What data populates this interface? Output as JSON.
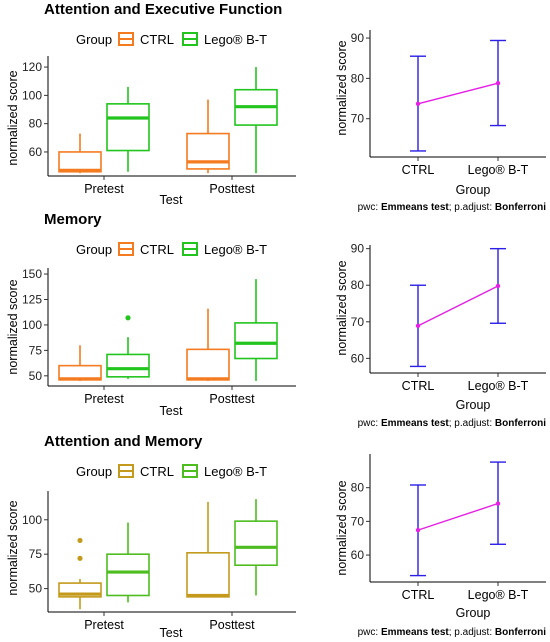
{
  "legend_group_label": "Group",
  "pwc_prefix": "pwc: ",
  "pwc_test": "Emmeans test",
  "pwc_mid": "; p.adjust: ",
  "pwc_adjust": "Bonferroni",
  "colors": {
    "a_ctrl": "#f47b20",
    "a_lego": "#22c41e",
    "b_ctrl": "#f47b20",
    "b_lego": "#22c41e",
    "c_ctrl": "#c49a1c",
    "c_lego": "#4dbd1f",
    "errorbar": "#2b1fe8",
    "line": "#e61ee6"
  },
  "chart_data": [
    {
      "type": "box",
      "title": "Attention and Executive Function",
      "xlabel": "Test",
      "ylabel": "normalized score",
      "categories": [
        "Pretest",
        "Posttest"
      ],
      "series_names": [
        "CTRL",
        "Lego® B-T"
      ],
      "yticks": [
        60,
        80,
        100,
        120
      ],
      "ylim": [
        43,
        125
      ],
      "boxes": [
        {
          "cat": 0,
          "series": 0,
          "min": 45,
          "q1": 46,
          "median": 47,
          "q3": 60,
          "max": 73,
          "outliers": []
        },
        {
          "cat": 0,
          "series": 1,
          "min": 46,
          "q1": 61,
          "median": 84,
          "q3": 94,
          "max": 106,
          "outliers": []
        },
        {
          "cat": 1,
          "series": 0,
          "min": 45,
          "q1": 48,
          "median": 53,
          "q3": 73,
          "max": 97,
          "outliers": []
        },
        {
          "cat": 1,
          "series": 1,
          "min": 45,
          "q1": 79,
          "median": 92,
          "q3": 104,
          "max": 120,
          "outliers": []
        }
      ]
    },
    {
      "type": "errorbar",
      "xlabel": "Group",
      "ylabel": "normalized score",
      "categories": [
        "CTRL",
        "Lego® B-T"
      ],
      "yticks": [
        70,
        80,
        90
      ],
      "ylim": [
        60.5,
        92
      ],
      "means": [
        73.7,
        78.8
      ],
      "lower": [
        62,
        68.3
      ],
      "upper": [
        85.5,
        89.4
      ]
    },
    {
      "type": "box",
      "title": "Memory",
      "xlabel": "Test",
      "ylabel": "normalized score",
      "categories": [
        "Pretest",
        "Posttest"
      ],
      "series_names": [
        "CTRL",
        "Lego® B-T"
      ],
      "yticks": [
        50,
        75,
        100,
        125,
        150
      ],
      "ylim": [
        40,
        152
      ],
      "boxes": [
        {
          "cat": 0,
          "series": 0,
          "min": 45,
          "q1": 46,
          "median": 47,
          "q3": 60,
          "max": 80,
          "outliers": []
        },
        {
          "cat": 0,
          "series": 1,
          "min": 47,
          "q1": 49,
          "median": 57,
          "q3": 71,
          "max": 88,
          "outliers": [
            107
          ]
        },
        {
          "cat": 1,
          "series": 0,
          "min": 45,
          "q1": 46,
          "median": 47,
          "q3": 76,
          "max": 116,
          "outliers": []
        },
        {
          "cat": 1,
          "series": 1,
          "min": 45,
          "q1": 67,
          "median": 82,
          "q3": 102,
          "max": 145,
          "outliers": []
        }
      ]
    },
    {
      "type": "errorbar",
      "xlabel": "Group",
      "ylabel": "normalized score",
      "categories": [
        "CTRL",
        "Lego® B-T"
      ],
      "yticks": [
        60,
        70,
        80,
        90
      ],
      "ylim": [
        56,
        91
      ],
      "means": [
        68.9,
        79.8
      ],
      "lower": [
        57.8,
        69.6
      ],
      "upper": [
        80,
        90
      ]
    },
    {
      "type": "box",
      "title": "Attention and Memory",
      "xlabel": "Test",
      "ylabel": "normalized score",
      "categories": [
        "Pretest",
        "Posttest"
      ],
      "series_names": [
        "CTRL",
        "Lego® B-T"
      ],
      "yticks": [
        50,
        75,
        100
      ],
      "ylim": [
        33,
        118
      ],
      "boxes": [
        {
          "cat": 0,
          "series": 0,
          "min": 35,
          "q1": 44,
          "median": 46,
          "q3": 54,
          "max": 57,
          "outliers": [
            72,
            85
          ]
        },
        {
          "cat": 0,
          "series": 1,
          "min": 40,
          "q1": 45,
          "median": 62,
          "q3": 75,
          "max": 98,
          "outliers": []
        },
        {
          "cat": 1,
          "series": 0,
          "min": 44,
          "q1": 44,
          "median": 45,
          "q3": 76,
          "max": 113,
          "outliers": []
        },
        {
          "cat": 1,
          "series": 1,
          "min": 45,
          "q1": 67,
          "median": 80,
          "q3": 99,
          "max": 115,
          "outliers": []
        }
      ]
    },
    {
      "type": "errorbar",
      "xlabel": "Group",
      "ylabel": "normalized score",
      "categories": [
        "CTRL",
        "Lego® B-T"
      ],
      "yticks": [
        60,
        70,
        80
      ],
      "ylim": [
        52,
        90
      ],
      "means": [
        67.4,
        75.3
      ],
      "lower": [
        53.9,
        63.2
      ],
      "upper": [
        80.8,
        87.6
      ]
    }
  ]
}
